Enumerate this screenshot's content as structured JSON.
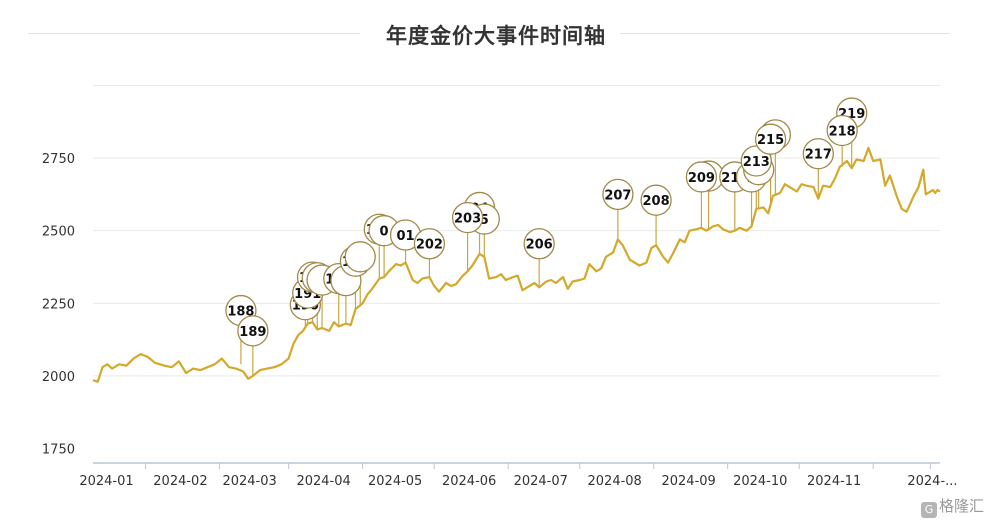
{
  "colors": {
    "line": "#d4a82a",
    "grid": "#e9e9e9",
    "axis": "#bcc6d8",
    "text": "#333333",
    "marker_fill": "#ffffff"
  },
  "watermark": {
    "logo": "G",
    "text": "格隆汇"
  },
  "chart_data": {
    "type": "line",
    "title": "年度金价大事件时间轴",
    "xlabel": "",
    "ylabel": "",
    "ylim": [
      1700,
      2950
    ],
    "yticks": [
      1750,
      2000,
      2250,
      2500,
      2750
    ],
    "x_range": [
      "2023-12-10",
      "2024-11-29"
    ],
    "xtick_labels": [
      {
        "date": "2024-01-01",
        "label": "2024-01"
      },
      {
        "date": "2024-02-01",
        "label": "2024-02"
      },
      {
        "date": "2024-03-01",
        "label": "2024-03"
      },
      {
        "date": "2024-04-01",
        "label": "2024-04"
      },
      {
        "date": "2024-05-01",
        "label": "2024-05"
      },
      {
        "date": "2024-06-01",
        "label": "2024-06"
      },
      {
        "date": "2024-07-01",
        "label": "2024-07"
      },
      {
        "date": "2024-08-01",
        "label": "2024-08"
      },
      {
        "date": "2024-09-01",
        "label": "2024-09"
      },
      {
        "date": "2024-10-01",
        "label": "2024-10"
      },
      {
        "date": "2024-11-01",
        "label": "2024-11"
      },
      {
        "date": "2024-11-25",
        "label": "2024-..."
      }
    ],
    "grid": true,
    "series": [
      {
        "points": [
          [
            "2023-12-10",
            1985
          ],
          [
            "2023-12-12",
            1980
          ],
          [
            "2023-12-14",
            2030
          ],
          [
            "2023-12-16",
            2040
          ],
          [
            "2023-12-18",
            2025
          ],
          [
            "2023-12-21",
            2040
          ],
          [
            "2023-12-24",
            2035
          ],
          [
            "2023-12-27",
            2060
          ],
          [
            "2023-12-30",
            2075
          ],
          [
            "2024-01-02",
            2065
          ],
          [
            "2024-01-05",
            2045
          ],
          [
            "2024-01-09",
            2035
          ],
          [
            "2024-01-12",
            2030
          ],
          [
            "2024-01-15",
            2050
          ],
          [
            "2024-01-18",
            2010
          ],
          [
            "2024-01-21",
            2025
          ],
          [
            "2024-01-24",
            2020
          ],
          [
            "2024-01-27",
            2030
          ],
          [
            "2024-01-30",
            2040
          ],
          [
            "2024-02-02",
            2060
          ],
          [
            "2024-02-05",
            2030
          ],
          [
            "2024-02-08",
            2025
          ],
          [
            "2024-02-11",
            2015
          ],
          [
            "2024-02-13",
            1990
          ],
          [
            "2024-02-15",
            2000
          ],
          [
            "2024-02-18",
            2020
          ],
          [
            "2024-02-21",
            2025
          ],
          [
            "2024-02-24",
            2030
          ],
          [
            "2024-02-27",
            2040
          ],
          [
            "2024-03-01",
            2060
          ],
          [
            "2024-03-03",
            2110
          ],
          [
            "2024-03-05",
            2140
          ],
          [
            "2024-03-07",
            2155
          ],
          [
            "2024-03-09",
            2180
          ],
          [
            "2024-03-11",
            2185
          ],
          [
            "2024-03-13",
            2160
          ],
          [
            "2024-03-15",
            2165
          ],
          [
            "2024-03-18",
            2155
          ],
          [
            "2024-03-20",
            2185
          ],
          [
            "2024-03-22",
            2170
          ],
          [
            "2024-03-25",
            2180
          ],
          [
            "2024-03-27",
            2175
          ],
          [
            "2024-03-29",
            2230
          ],
          [
            "2024-04-01",
            2250
          ],
          [
            "2024-04-03",
            2280
          ],
          [
            "2024-04-05",
            2300
          ],
          [
            "2024-04-08",
            2335
          ],
          [
            "2024-04-10",
            2340
          ],
          [
            "2024-04-12",
            2360
          ],
          [
            "2024-04-15",
            2385
          ],
          [
            "2024-04-17",
            2380
          ],
          [
            "2024-04-19",
            2390
          ],
          [
            "2024-04-22",
            2330
          ],
          [
            "2024-04-24",
            2320
          ],
          [
            "2024-04-26",
            2335
          ],
          [
            "2024-04-29",
            2340
          ],
          [
            "2024-05-01",
            2310
          ],
          [
            "2024-05-03",
            2290
          ],
          [
            "2024-05-06",
            2320
          ],
          [
            "2024-05-08",
            2310
          ],
          [
            "2024-05-10",
            2315
          ],
          [
            "2024-05-13",
            2345
          ],
          [
            "2024-05-15",
            2360
          ],
          [
            "2024-05-17",
            2380
          ],
          [
            "2024-05-20",
            2420
          ],
          [
            "2024-05-22",
            2410
          ],
          [
            "2024-05-24",
            2335
          ],
          [
            "2024-05-27",
            2340
          ],
          [
            "2024-05-29",
            2350
          ],
          [
            "2024-05-31",
            2330
          ],
          [
            "2024-06-03",
            2340
          ],
          [
            "2024-06-05",
            2345
          ],
          [
            "2024-06-07",
            2295
          ],
          [
            "2024-06-10",
            2310
          ],
          [
            "2024-06-12",
            2320
          ],
          [
            "2024-06-14",
            2305
          ],
          [
            "2024-06-17",
            2325
          ],
          [
            "2024-06-19",
            2330
          ],
          [
            "2024-06-21",
            2320
          ],
          [
            "2024-06-24",
            2340
          ],
          [
            "2024-06-26",
            2300
          ],
          [
            "2024-06-28",
            2325
          ],
          [
            "2024-07-01",
            2330
          ],
          [
            "2024-07-03",
            2335
          ],
          [
            "2024-07-05",
            2385
          ],
          [
            "2024-07-08",
            2360
          ],
          [
            "2024-07-10",
            2370
          ],
          [
            "2024-07-12",
            2410
          ],
          [
            "2024-07-15",
            2425
          ],
          [
            "2024-07-17",
            2470
          ],
          [
            "2024-07-19",
            2450
          ],
          [
            "2024-07-22",
            2400
          ],
          [
            "2024-07-24",
            2390
          ],
          [
            "2024-07-26",
            2380
          ],
          [
            "2024-07-29",
            2390
          ],
          [
            "2024-07-31",
            2440
          ],
          [
            "2024-08-02",
            2450
          ],
          [
            "2024-08-05",
            2410
          ],
          [
            "2024-08-07",
            2390
          ],
          [
            "2024-08-09",
            2420
          ],
          [
            "2024-08-12",
            2470
          ],
          [
            "2024-08-14",
            2460
          ],
          [
            "2024-08-16",
            2500
          ],
          [
            "2024-08-19",
            2505
          ],
          [
            "2024-08-21",
            2510
          ],
          [
            "2024-08-23",
            2500
          ],
          [
            "2024-08-26",
            2515
          ],
          [
            "2024-08-28",
            2520
          ],
          [
            "2024-08-30",
            2505
          ],
          [
            "2024-09-02",
            2495
          ],
          [
            "2024-09-04",
            2500
          ],
          [
            "2024-09-06",
            2510
          ],
          [
            "2024-09-09",
            2500
          ],
          [
            "2024-09-11",
            2515
          ],
          [
            "2024-09-13",
            2575
          ],
          [
            "2024-09-16",
            2580
          ],
          [
            "2024-09-18",
            2560
          ],
          [
            "2024-09-20",
            2620
          ],
          [
            "2024-09-23",
            2630
          ],
          [
            "2024-09-25",
            2660
          ],
          [
            "2024-09-27",
            2650
          ],
          [
            "2024-09-30",
            2635
          ],
          [
            "2024-10-02",
            2660
          ],
          [
            "2024-10-04",
            2655
          ],
          [
            "2024-10-07",
            2650
          ],
          [
            "2024-10-09",
            2610
          ],
          [
            "2024-10-11",
            2655
          ],
          [
            "2024-10-14",
            2650
          ],
          [
            "2024-10-16",
            2680
          ],
          [
            "2024-10-18",
            2720
          ],
          [
            "2024-10-21",
            2740
          ],
          [
            "2024-10-23",
            2715
          ],
          [
            "2024-10-25",
            2745
          ],
          [
            "2024-10-28",
            2740
          ],
          [
            "2024-10-30",
            2785
          ],
          [
            "2024-11-01",
            2740
          ],
          [
            "2024-11-04",
            2745
          ],
          [
            "2024-11-06",
            2655
          ],
          [
            "2024-11-08",
            2690
          ],
          [
            "2024-11-11",
            2615
          ],
          [
            "2024-11-13",
            2575
          ],
          [
            "2024-11-15",
            2565
          ],
          [
            "2024-11-18",
            2620
          ],
          [
            "2024-11-20",
            2650
          ],
          [
            "2024-11-22",
            2710
          ],
          [
            "2024-11-23",
            2625
          ],
          [
            "2024-11-24",
            2630
          ],
          [
            "2024-11-25",
            2635
          ],
          [
            "2024-11-26",
            2640
          ],
          [
            "2024-11-27",
            2630
          ],
          [
            "2024-11-28",
            2640
          ],
          [
            "2024-11-29",
            2635
          ]
        ]
      }
    ],
    "markers": [
      {
        "label": "188",
        "date": "2024-02-10",
        "value": 2040,
        "label_value": 2225
      },
      {
        "label": "189",
        "date": "2024-02-15",
        "value": 2000,
        "label_value": 2155
      },
      {
        "label": "190",
        "date": "2024-03-08",
        "value": 2165,
        "label_value": 2245
      },
      {
        "label": "191",
        "date": "2024-03-09",
        "value": 2180,
        "label_value": 2285
      },
      {
        "label": "192",
        "date": "2024-03-11",
        "value": 2185,
        "label_value": 2340
      },
      {
        "label": "",
        "date": "2024-03-13",
        "value": 2165,
        "label_value": 2338
      },
      {
        "label": "",
        "date": "2024-03-15",
        "value": 2165,
        "label_value": 2330
      },
      {
        "label": "195",
        "date": "2024-03-22",
        "value": 2170,
        "label_value": 2335
      },
      {
        "label": "",
        "date": "2024-03-25",
        "value": 2180,
        "label_value": 2328
      },
      {
        "label": "197",
        "date": "2024-03-29",
        "value": 2230,
        "label_value": 2395
      },
      {
        "label": "",
        "date": "2024-03-31",
        "value": 2245,
        "label_value": 2410
      },
      {
        "label": "199",
        "date": "2024-04-08",
        "value": 2335,
        "label_value": 2505
      },
      {
        "label": "0",
        "date": "2024-04-10",
        "value": 2340,
        "label_value": 2500
      },
      {
        "label": "01",
        "date": "2024-04-19",
        "value": 2390,
        "label_value": 2485
      },
      {
        "label": "202",
        "date": "2024-04-29",
        "value": 2340,
        "label_value": 2455
      },
      {
        "label": "04",
        "date": "2024-05-20",
        "value": 2420,
        "label_value": 2580
      },
      {
        "label": "5",
        "date": "2024-05-22",
        "value": 2410,
        "label_value": 2540
      },
      {
        "label": "203",
        "date": "2024-05-15",
        "value": 2360,
        "label_value": 2545
      },
      {
        "label": "206",
        "date": "2024-06-14",
        "value": 2305,
        "label_value": 2455
      },
      {
        "label": "207",
        "date": "2024-07-17",
        "value": 2470,
        "label_value": 2625
      },
      {
        "label": "208",
        "date": "2024-08-02",
        "value": 2450,
        "label_value": 2605
      },
      {
        "label": "",
        "date": "2024-08-24",
        "value": 2500,
        "label_value": 2688
      },
      {
        "label": "209",
        "date": "2024-08-21",
        "value": 2510,
        "label_value": 2685
      },
      {
        "label": "211",
        "date": "2024-09-04",
        "value": 2500,
        "label_value": 2685
      },
      {
        "label": "2",
        "date": "2024-09-11",
        "value": 2515,
        "label_value": 2685
      },
      {
        "label": "4",
        "date": "2024-09-14",
        "value": 2575,
        "label_value": 2710
      },
      {
        "label": "213",
        "date": "2024-09-13",
        "value": 2575,
        "label_value": 2740
      },
      {
        "label": "5",
        "date": "2024-09-21",
        "value": 2620,
        "label_value": 2830
      },
      {
        "label": "215",
        "date": "2024-09-19",
        "value": 2590,
        "label_value": 2815
      },
      {
        "label": "217",
        "date": "2024-10-09",
        "value": 2610,
        "label_value": 2765
      },
      {
        "label": "219",
        "date": "2024-10-23",
        "value": 2715,
        "label_value": 2905
      },
      {
        "label": "218",
        "date": "2024-10-19",
        "value": 2720,
        "label_value": 2845
      }
    ]
  }
}
